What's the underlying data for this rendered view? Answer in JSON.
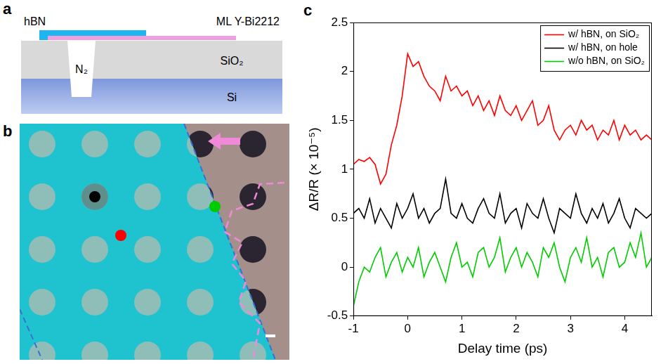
{
  "figure": {
    "a": {
      "label": "a",
      "layers": {
        "top_left": "hBN",
        "top_right": "ML Y-Bi2212",
        "hole": "N₂",
        "oxide": "SiO₂",
        "substrate": "Si"
      }
    },
    "b": {
      "label": "b"
    }
  },
  "chart_data": {
    "label": "c",
    "type": "line",
    "x_label": "Delay time (ps)",
    "y_label": "ΔR/R (× 10⁻⁵)",
    "x": [
      -1,
      -0.9,
      -0.8,
      -0.7,
      -0.6,
      -0.5,
      -0.4,
      -0.3,
      -0.2,
      -0.1,
      0,
      0.1,
      0.2,
      0.3,
      0.4,
      0.5,
      0.6,
      0.7,
      0.8,
      0.9,
      1,
      1.1,
      1.2,
      1.3,
      1.4,
      1.5,
      1.6,
      1.7,
      1.8,
      1.9,
      2,
      2.1,
      2.2,
      2.3,
      2.4,
      2.5,
      2.6,
      2.7,
      2.8,
      2.9,
      3,
      3.1,
      3.2,
      3.3,
      3.4,
      3.5,
      3.6,
      3.7,
      3.8,
      3.9,
      4,
      4.1,
      4.2,
      4.3,
      4.4,
      4.5
    ],
    "series": [
      {
        "name": "w/ hBN, on SiO₂",
        "color": "#ff0000",
        "marker": "none",
        "line_style": "solid",
        "values": [
          1.05,
          1.1,
          1.08,
          1.12,
          1.05,
          0.85,
          0.95,
          1.25,
          1.45,
          1.75,
          2.18,
          2.05,
          2.1,
          1.95,
          1.85,
          1.8,
          1.7,
          1.95,
          1.8,
          1.85,
          1.75,
          1.8,
          1.65,
          1.75,
          1.6,
          1.7,
          1.55,
          1.75,
          1.6,
          1.55,
          1.65,
          1.5,
          1.6,
          1.7,
          1.45,
          1.5,
          1.65,
          1.4,
          1.3,
          1.4,
          1.45,
          1.35,
          1.5,
          1.4,
          1.45,
          1.3,
          1.4,
          1.35,
          1.5,
          1.3,
          1.45,
          1.35,
          1.4,
          1.3,
          1.35,
          1.3
        ]
      },
      {
        "name": "w/ hBN, on hole",
        "color": "#000000",
        "marker": "none",
        "line_style": "solid",
        "values": [
          0.55,
          0.6,
          0.5,
          0.7,
          0.45,
          0.6,
          0.5,
          0.4,
          0.65,
          0.5,
          0.6,
          0.75,
          0.5,
          0.6,
          0.45,
          0.55,
          0.6,
          0.9,
          0.55,
          0.5,
          0.65,
          0.5,
          0.45,
          0.6,
          0.7,
          0.55,
          0.5,
          0.75,
          0.45,
          0.55,
          0.6,
          0.4,
          0.65,
          0.55,
          0.5,
          0.7,
          0.5,
          0.35,
          0.6,
          0.55,
          0.5,
          0.75,
          0.55,
          0.45,
          0.6,
          0.5,
          0.65,
          0.45,
          0.55,
          0.7,
          0.5,
          0.4,
          0.6,
          0.55,
          0.5,
          0.55
        ]
      },
      {
        "name": "w/o hBN, on SiO₂",
        "color": "#00cc00",
        "marker": "none",
        "line_style": "solid",
        "values": [
          -0.4,
          -0.15,
          0.0,
          -0.05,
          0.1,
          0.2,
          -0.1,
          0.05,
          0.15,
          -0.05,
          0.1,
          0.0,
          0.2,
          -0.1,
          0.05,
          0.15,
          0.0,
          -0.15,
          0.1,
          0.25,
          0.0,
          0.05,
          -0.1,
          0.15,
          0.2,
          0.0,
          0.1,
          0.3,
          -0.05,
          0.1,
          0.2,
          0.0,
          0.15,
          0.05,
          -0.1,
          0.2,
          0.1,
          0.25,
          0.0,
          -0.15,
          0.1,
          0.2,
          0.05,
          0.3,
          0.0,
          0.1,
          -0.1,
          0.15,
          0.2,
          0.0,
          0.05,
          0.25,
          0.1,
          0.35,
          0.0,
          0.1
        ]
      }
    ],
    "xlim": [
      -1,
      4.5
    ],
    "xticks": [
      -1,
      0,
      1,
      2,
      3,
      4
    ],
    "ylim": [
      -0.5,
      2.5
    ],
    "yticks": [
      -0.5,
      0,
      0.5,
      1,
      1.5,
      2,
      2.5
    ],
    "grid": false,
    "legend": "top-right"
  }
}
